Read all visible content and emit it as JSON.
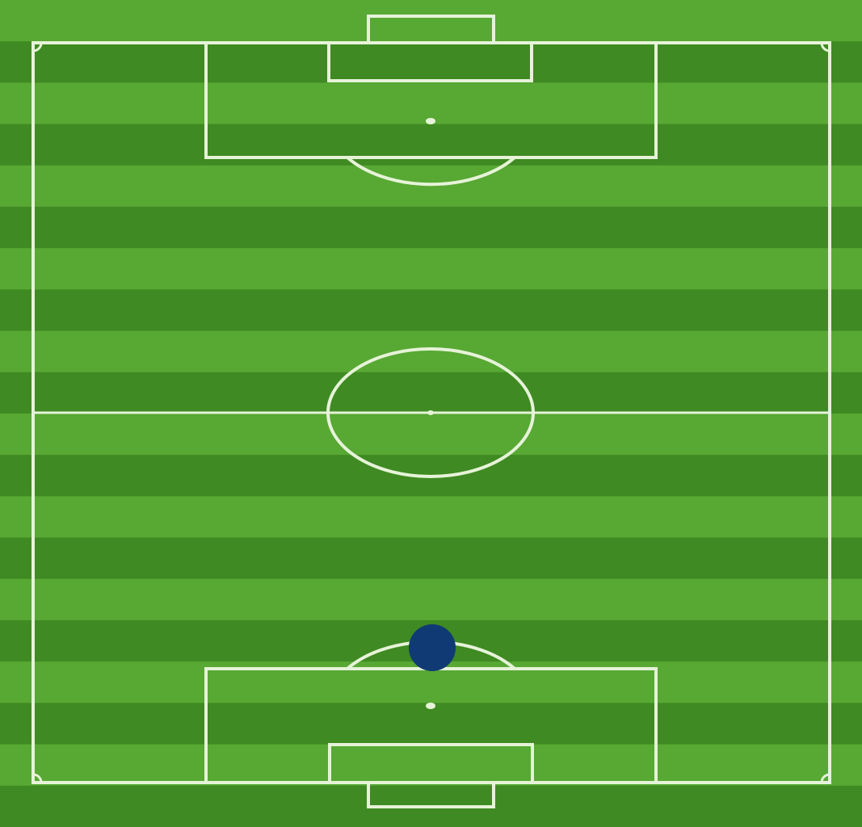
{
  "pitch": {
    "grass_light": "#58a834",
    "grass_dark": "#3f8a22",
    "line_color": "#e6f3d8",
    "stripe_count": 20,
    "orientation": "vertical"
  },
  "player_marker": {
    "color": "#0f3a73",
    "shape": "circle",
    "icon": "player-token-icon"
  }
}
